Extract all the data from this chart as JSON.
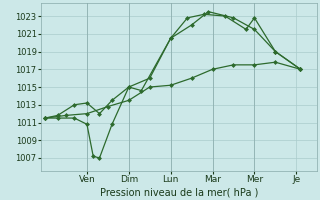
{
  "background_color": "#cce8e8",
  "grid_color": "#aacccc",
  "line_color": "#2d6a2d",
  "x_labels": [
    "Ven",
    "Dim",
    "Lun",
    "Mar",
    "Mer",
    "Je"
  ],
  "xlabel": "Pression niveau de la mer( hPa )",
  "ylim": [
    1005.5,
    1024.5
  ],
  "yticks": [
    1007,
    1009,
    1011,
    1013,
    1015,
    1017,
    1019,
    1021,
    1023
  ],
  "xlim": [
    -0.1,
    6.5
  ],
  "x_tick_positions": [
    1.0,
    2.0,
    3.0,
    4.0,
    5.0,
    6.0
  ],
  "line1_x": [
    0.0,
    0.3,
    0.7,
    1.0,
    1.15,
    1.3,
    1.6,
    2.0,
    2.3,
    3.0,
    3.4,
    3.8,
    4.3,
    4.8,
    5.0,
    5.5,
    6.1
  ],
  "line1_y": [
    1011.5,
    1011.5,
    1011.5,
    1010.8,
    1007.2,
    1007.0,
    1010.8,
    1015.0,
    1014.6,
    1020.5,
    1022.8,
    1023.2,
    1023.0,
    1021.5,
    1022.8,
    1019.0,
    1017.0
  ],
  "line2_x": [
    0.0,
    0.3,
    0.7,
    1.0,
    1.3,
    1.6,
    2.0,
    2.5,
    3.0,
    3.5,
    3.9,
    4.5,
    5.0,
    5.5,
    6.1
  ],
  "line2_y": [
    1011.5,
    1011.8,
    1013.0,
    1013.2,
    1012.0,
    1013.5,
    1015.0,
    1016.0,
    1020.5,
    1022.0,
    1023.5,
    1022.8,
    1021.5,
    1019.0,
    1017.0
  ],
  "line3_x": [
    0.0,
    0.5,
    1.0,
    1.5,
    2.0,
    2.5,
    3.0,
    3.5,
    4.0,
    4.5,
    5.0,
    5.5,
    6.1
  ],
  "line3_y": [
    1011.5,
    1011.8,
    1012.0,
    1012.8,
    1013.5,
    1015.0,
    1015.2,
    1016.0,
    1017.0,
    1017.5,
    1017.5,
    1017.8,
    1017.0
  ],
  "ylabel_fontsize": 6,
  "xlabel_fontsize": 7,
  "xtick_fontsize": 6.5,
  "line_width": 0.9,
  "marker_size": 2.5,
  "vline_positions": [
    1.0,
    2.0,
    3.0,
    4.0,
    5.0
  ]
}
